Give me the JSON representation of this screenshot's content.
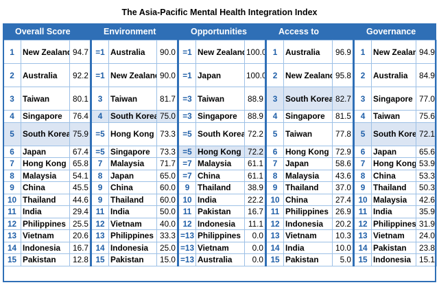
{
  "title": "The Asia-Pacific Mental Health Integration Index",
  "columns": [
    "Overall Score",
    "Environment",
    "Opportunities",
    "Access to treatment",
    "Governance"
  ],
  "rows": [
    [
      {
        "rank": "1",
        "name": "New Zealand",
        "score": "94.7"
      },
      {
        "rank": "=1",
        "name": "Australia",
        "score": "90.0"
      },
      {
        "rank": "=1",
        "name": "New Zealand",
        "score": "100.0"
      },
      {
        "rank": "1",
        "name": "Australia",
        "score": "96.9"
      },
      {
        "rank": "1",
        "name": "New Zealand",
        "score": "94.9"
      }
    ],
    [
      {
        "rank": "2",
        "name": "Australia",
        "score": "92.2"
      },
      {
        "rank": "=1",
        "name": "New Zealand",
        "score": "90.0"
      },
      {
        "rank": "=1",
        "name": "Japan",
        "score": "100.0"
      },
      {
        "rank": "2",
        "name": "New Zealand",
        "score": "95.8"
      },
      {
        "rank": "2",
        "name": "Australia",
        "score": "84.9"
      }
    ],
    [
      {
        "rank": "3",
        "name": "Taiwan",
        "score": "80.1"
      },
      {
        "rank": "3",
        "name": "Taiwan",
        "score": "81.7"
      },
      {
        "rank": "=3",
        "name": "Taiwan",
        "score": "88.9"
      },
      {
        "rank": "3",
        "name": "South Korea",
        "score": "82.7",
        "hl": true
      },
      {
        "rank": "3",
        "name": "Singapore",
        "score": "77.0"
      }
    ],
    [
      {
        "rank": "4",
        "name": "Singapore",
        "score": "76.4"
      },
      {
        "rank": "4",
        "name": "South Korea",
        "score": "75.0",
        "hl": true
      },
      {
        "rank": "=3",
        "name": "Singapore",
        "score": "88.9"
      },
      {
        "rank": "4",
        "name": "Singapore",
        "score": "81.5"
      },
      {
        "rank": "4",
        "name": "Taiwan",
        "score": "75.6"
      }
    ],
    [
      {
        "rank": "5",
        "name": "South Korea",
        "score": "75.9",
        "hl": true
      },
      {
        "rank": "=5",
        "name": "Hong Kong",
        "score": "73.3"
      },
      {
        "rank": "=5",
        "name": "South Korea",
        "score": "72.2"
      },
      {
        "rank": "5",
        "name": "Taiwan",
        "score": "77.8"
      },
      {
        "rank": "5",
        "name": "South Korea",
        "score": "72.1",
        "hl": true
      }
    ],
    [
      {
        "rank": "6",
        "name": "Japan",
        "score": "67.4"
      },
      {
        "rank": "=5",
        "name": "Singapore",
        "score": "73.3"
      },
      {
        "rank": "=5",
        "name": "Hong Kong",
        "score": "72.2",
        "hl": true
      },
      {
        "rank": "6",
        "name": "Hong Kong",
        "score": "72.9"
      },
      {
        "rank": "6",
        "name": "Japan",
        "score": "65.6"
      }
    ],
    [
      {
        "rank": "7",
        "name": "Hong Kong",
        "score": "65.8"
      },
      {
        "rank": "7",
        "name": "Malaysia",
        "score": "71.7"
      },
      {
        "rank": "=7",
        "name": "Malaysia",
        "score": "61.1"
      },
      {
        "rank": "7",
        "name": "Japan",
        "score": "58.6"
      },
      {
        "rank": "7",
        "name": "Hong Kong",
        "score": "53.9"
      }
    ],
    [
      {
        "rank": "8",
        "name": "Malaysia",
        "score": "54.1"
      },
      {
        "rank": "8",
        "name": "Japan",
        "score": "65.0"
      },
      {
        "rank": "=7",
        "name": "China",
        "score": "61.1"
      },
      {
        "rank": "8",
        "name": "Malaysia",
        "score": "43.6"
      },
      {
        "rank": "8",
        "name": "China",
        "score": "53.3"
      }
    ],
    [
      {
        "rank": "9",
        "name": "China",
        "score": "45.5"
      },
      {
        "rank": "9",
        "name": "China",
        "score": "60.0"
      },
      {
        "rank": "9",
        "name": "Thailand",
        "score": "38.9"
      },
      {
        "rank": "9",
        "name": "Thailand",
        "score": "37.0"
      },
      {
        "rank": "9",
        "name": "Thailand",
        "score": "50.3"
      }
    ],
    [
      {
        "rank": "10",
        "name": "Thailand",
        "score": "44.6"
      },
      {
        "rank": "9",
        "name": "Thailand",
        "score": "60.0"
      },
      {
        "rank": "10",
        "name": "India",
        "score": "22.2"
      },
      {
        "rank": "10",
        "name": "China",
        "score": "27.4"
      },
      {
        "rank": "10",
        "name": "Malaysia",
        "score": "42.6"
      }
    ],
    [
      {
        "rank": "11",
        "name": "India",
        "score": "29.4"
      },
      {
        "rank": "11",
        "name": "India",
        "score": "50.0"
      },
      {
        "rank": "11",
        "name": "Pakistan",
        "score": "16.7"
      },
      {
        "rank": "11",
        "name": "Philippines",
        "score": "26.9"
      },
      {
        "rank": "11",
        "name": "India",
        "score": "35.9"
      }
    ],
    [
      {
        "rank": "12",
        "name": "Philippines",
        "score": "25.5"
      },
      {
        "rank": "12",
        "name": "Vietnam",
        "score": "40.0"
      },
      {
        "rank": "12",
        "name": "Indonesia",
        "score": "11.1"
      },
      {
        "rank": "12",
        "name": "Indonesia",
        "score": "20.2"
      },
      {
        "rank": "12",
        "name": "Philippines",
        "score": "31.9"
      }
    ],
    [
      {
        "rank": "13",
        "name": "Vietnam",
        "score": "20.6"
      },
      {
        "rank": "13",
        "name": "Philippines",
        "score": "33.3"
      },
      {
        "rank": "=13",
        "name": "Philippines",
        "score": "0.0"
      },
      {
        "rank": "13",
        "name": "Vietnam",
        "score": "10.3"
      },
      {
        "rank": "13",
        "name": "Vietnam",
        "score": "24.0"
      }
    ],
    [
      {
        "rank": "14",
        "name": "Indonesia",
        "score": "16.7"
      },
      {
        "rank": "14",
        "name": "Indonesia",
        "score": "25.0"
      },
      {
        "rank": "=13",
        "name": "Vietnam",
        "score": "0.0"
      },
      {
        "rank": "14",
        "name": "India",
        "score": "10.0"
      },
      {
        "rank": "14",
        "name": "Pakistan",
        "score": "23.8"
      }
    ],
    [
      {
        "rank": "15",
        "name": "Pakistan",
        "score": "12.8"
      },
      {
        "rank": "15",
        "name": "Pakistan",
        "score": "15.0"
      },
      {
        "rank": "=13",
        "name": "Australia",
        "score": "0.0"
      },
      {
        "rank": "15",
        "name": "Pakistan",
        "score": "5.0"
      },
      {
        "rank": "15",
        "name": "Indonesia",
        "score": "15.1"
      }
    ]
  ]
}
